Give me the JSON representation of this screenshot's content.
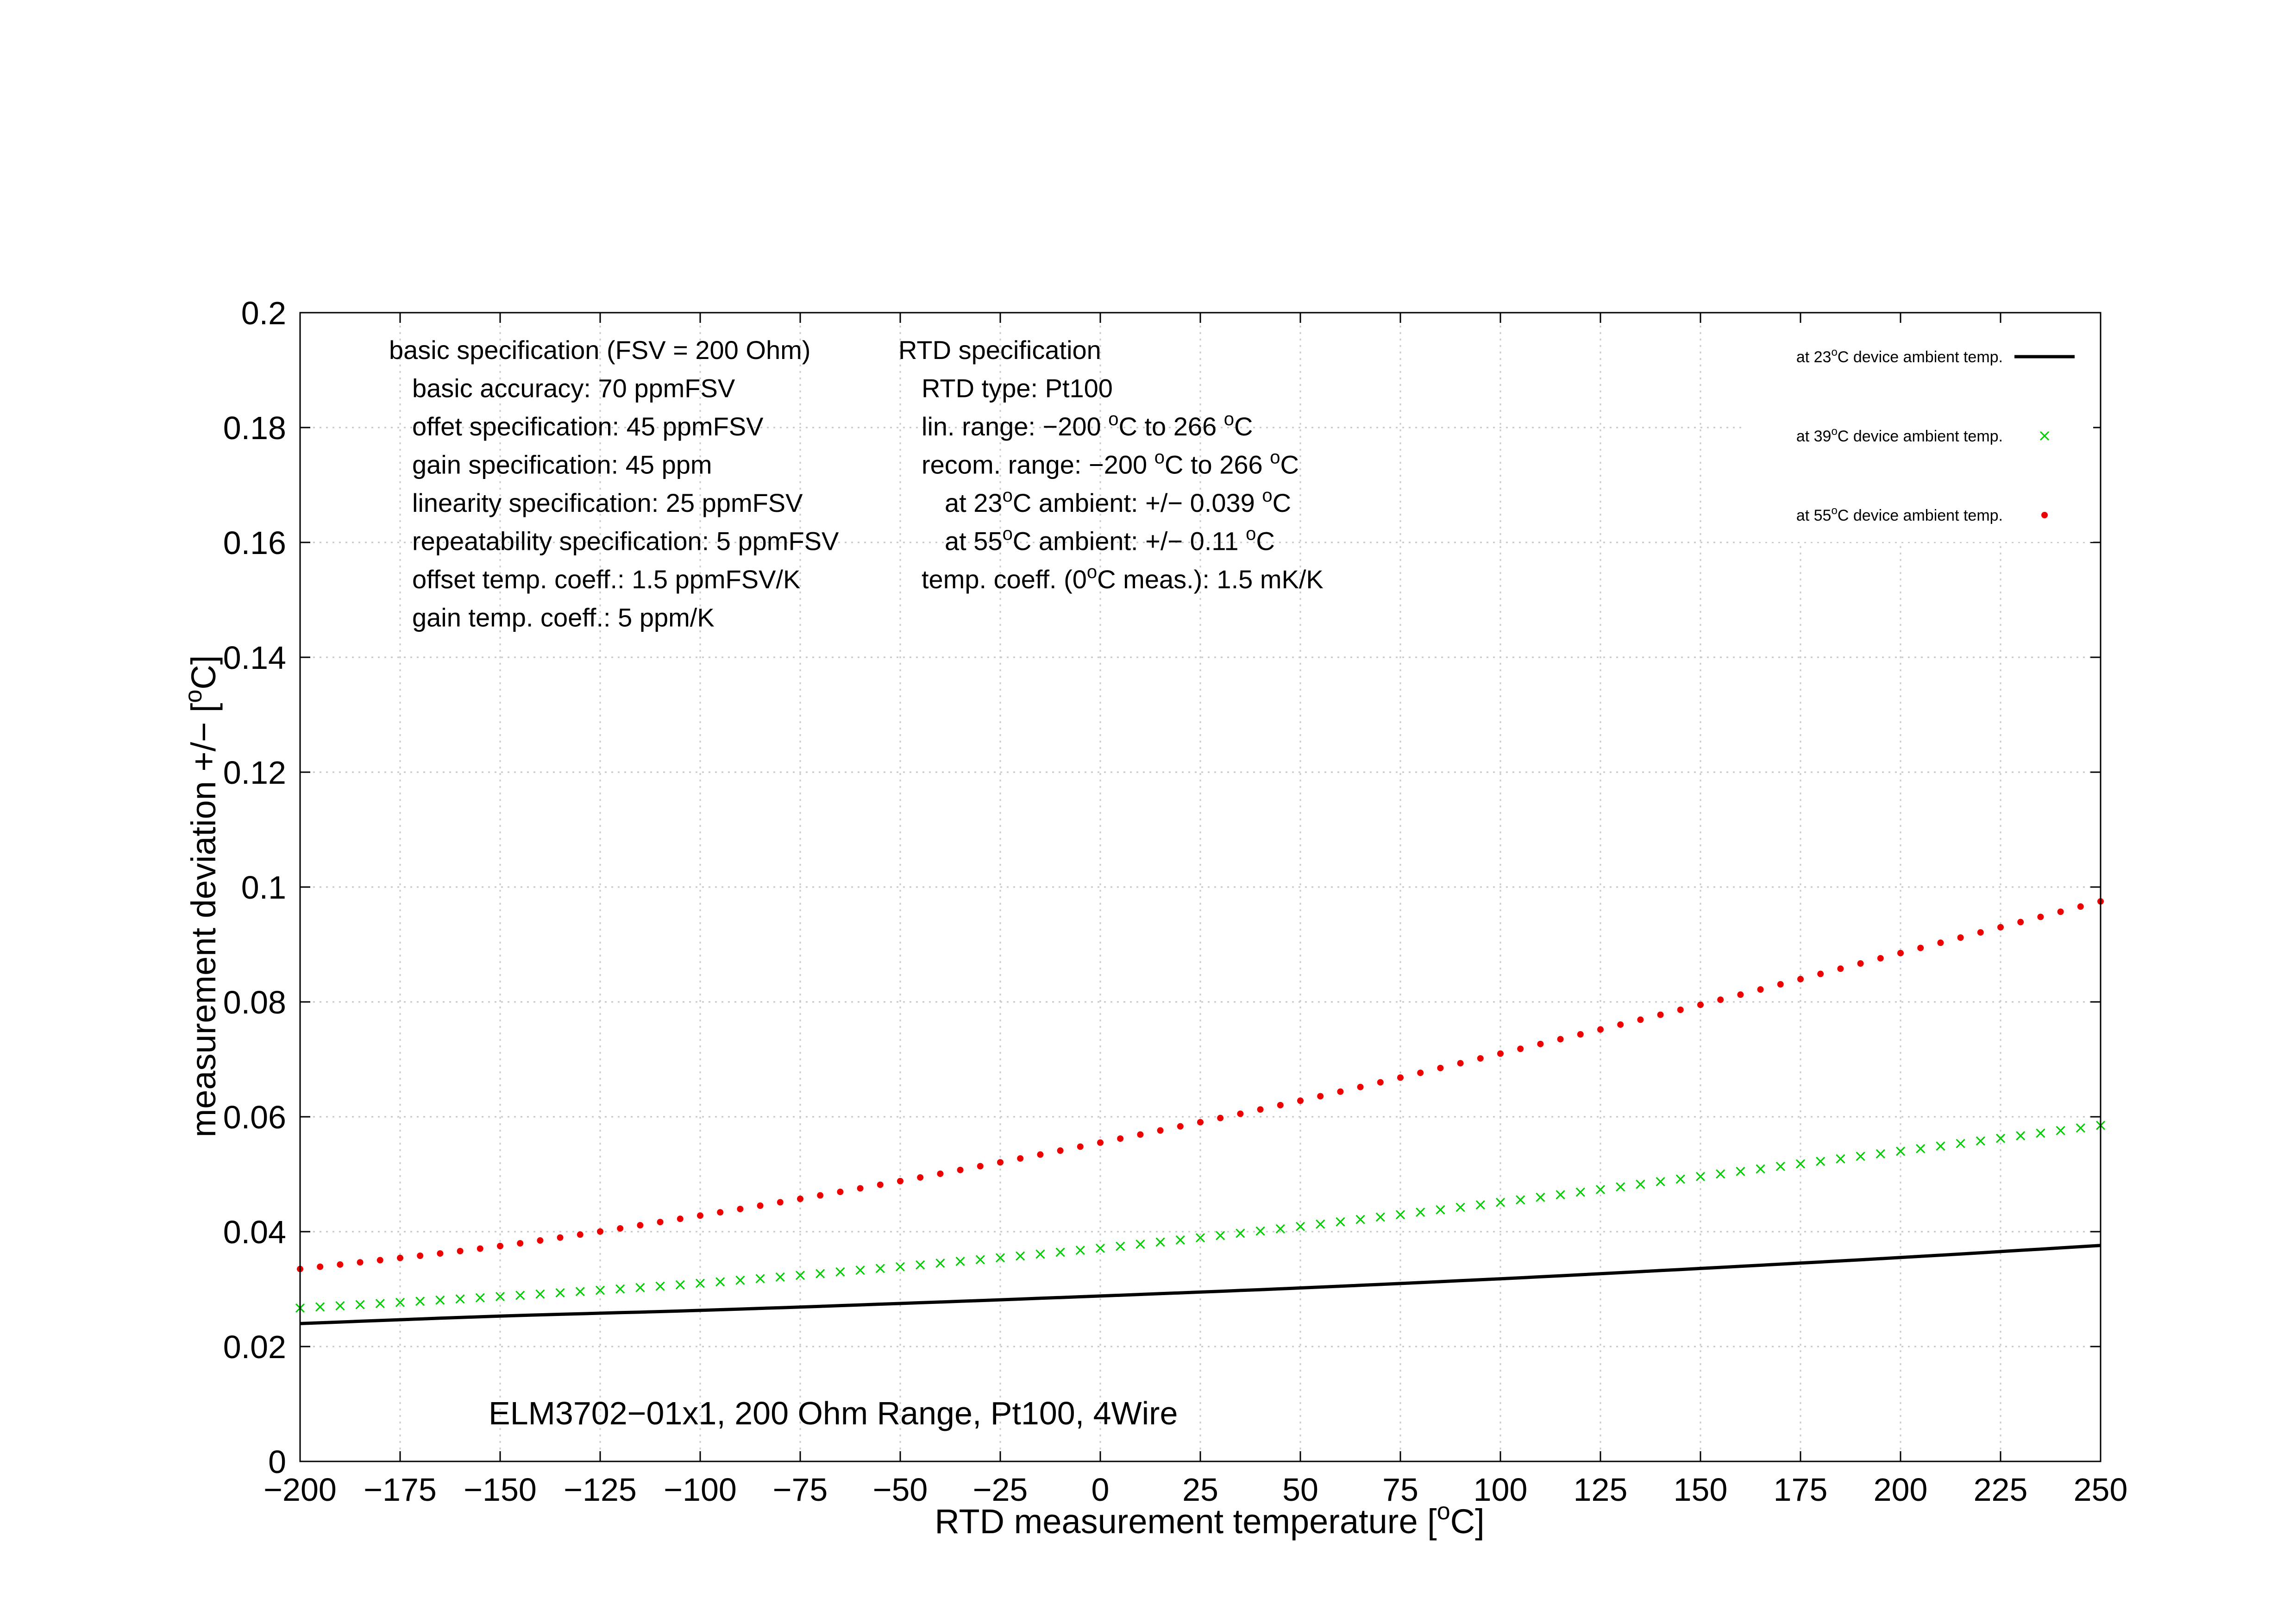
{
  "chart_data": {
    "type": "line",
    "title": "",
    "annotation": "ELM3702−01x1, 200 Ohm Range, Pt100, 4Wire",
    "xlabel": {
      "before": "RTD measurement temperature [",
      "sup": "o",
      "after": "C]"
    },
    "ylabel": {
      "before": "measurement deviation +/− [",
      "sup": "o",
      "after": "C]"
    },
    "xlim": [
      -200,
      250
    ],
    "ylim": [
      0,
      0.2
    ],
    "x_ticks": [
      -200,
      -175,
      -150,
      -125,
      -100,
      -75,
      -50,
      -25,
      0,
      25,
      50,
      75,
      100,
      125,
      150,
      175,
      200,
      225,
      250
    ],
    "x_tick_labels": [
      "−200",
      "−175",
      "−150",
      "−125",
      "−100",
      "−75",
      "−50",
      "−25",
      "0",
      "25",
      "50",
      "75",
      "100",
      "125",
      "150",
      "175",
      "200",
      "225",
      "250"
    ],
    "y_ticks": [
      0,
      0.02,
      0.04,
      0.06,
      0.08,
      0.1,
      0.12,
      0.14,
      0.16,
      0.18,
      0.2
    ],
    "y_tick_labels": [
      "0",
      "0.02",
      "0.04",
      "0.06",
      "0.08",
      "0.1",
      "0.12",
      "0.14",
      "0.16",
      "0.18",
      "0.2"
    ],
    "grid": true,
    "legend_position": "top-right",
    "series": [
      {
        "name": {
          "before": "at 23",
          "sup": "o",
          "after": "C device ambient temp."
        },
        "style": "line",
        "color": "#000000",
        "x": [
          -200,
          -150,
          -100,
          -50,
          0,
          50,
          100,
          150,
          200,
          250
        ],
        "y": [
          0.024,
          0.0253,
          0.0263,
          0.0275,
          0.0288,
          0.0302,
          0.0318,
          0.0336,
          0.0355,
          0.0376
        ]
      },
      {
        "name": {
          "before": "at 39",
          "sup": "o",
          "after": "C device ambient temp."
        },
        "style": "cross",
        "color": "#00cc00",
        "x": [
          -200,
          -150,
          -100,
          -50,
          0,
          50,
          100,
          150,
          200,
          250
        ],
        "y": [
          0.0267,
          0.0287,
          0.031,
          0.0339,
          0.0371,
          0.0409,
          0.0451,
          0.0496,
          0.054,
          0.0585
        ]
      },
      {
        "name": {
          "before": "at 55",
          "sup": "o",
          "after": "C device ambient temp."
        },
        "style": "dot",
        "color": "#ee0000",
        "x": [
          -200,
          -150,
          -100,
          -50,
          0,
          50,
          100,
          150,
          200,
          250
        ],
        "y": [
          0.0335,
          0.0375,
          0.0428,
          0.0488,
          0.0555,
          0.0628,
          0.071,
          0.0795,
          0.0885,
          0.0975
        ]
      }
    ]
  },
  "spec_left": [
    "basic specification (FSV = 200 Ohm)",
    "basic accuracy: 70 ppmFSV",
    "offet specification: 45 ppmFSV",
    "gain specification: 45 ppm",
    "linearity specification: 25 ppmFSV",
    "repeatability specification: 5 ppmFSV",
    "offset temp. coeff.: 1.5 ppmFSV/K",
    "gain temp. coeff.: 5 ppm/K"
  ],
  "spec_right": [
    [
      {
        "t": "RTD specification"
      }
    ],
    [
      {
        "t": "RTD type: Pt100"
      }
    ],
    [
      {
        "t": "lin. range: −200 "
      },
      {
        "t": "o",
        "sup": true
      },
      {
        "t": "C to 266 "
      },
      {
        "t": "o",
        "sup": true
      },
      {
        "t": "C"
      }
    ],
    [
      {
        "t": "recom. range: −200 "
      },
      {
        "t": "o",
        "sup": true
      },
      {
        "t": "C to 266 "
      },
      {
        "t": "o",
        "sup": true
      },
      {
        "t": "C"
      }
    ],
    [
      {
        "t": "at 23"
      },
      {
        "t": "o",
        "sup": true
      },
      {
        "t": "C ambient: +/− 0.039 "
      },
      {
        "t": "o",
        "sup": true
      },
      {
        "t": "C"
      }
    ],
    [
      {
        "t": "at 55"
      },
      {
        "t": "o",
        "sup": true
      },
      {
        "t": "C ambient: +/− 0.11 "
      },
      {
        "t": "o",
        "sup": true
      },
      {
        "t": "C"
      }
    ],
    [
      {
        "t": "temp. coeff. (0"
      },
      {
        "t": "o",
        "sup": true
      },
      {
        "t": "C meas.): 1.5 mK/K"
      }
    ]
  ]
}
